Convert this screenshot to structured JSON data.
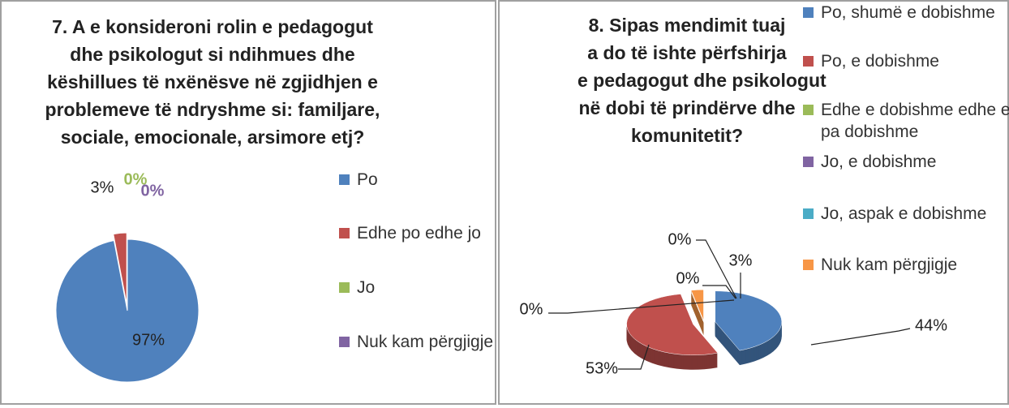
{
  "chart_data": [
    {
      "type": "pie",
      "title": [
        "7. A e konsideroni rolin e pedagogut",
        "dhe psikologut si ndihmues dhe",
        "këshillues të nxënësve në zgjidhjen e",
        "problemeve të ndryshme si: familjare,",
        "sociale, emocionale, arsimore etj?"
      ],
      "categories": [
        "Po",
        "Edhe po edhe jo",
        "Jo",
        "Nuk kam përgjigje"
      ],
      "values": [
        97,
        3,
        0,
        0
      ],
      "value_labels": [
        "97%",
        "3%",
        "0%",
        "0%"
      ],
      "colors": [
        "#4f81bd",
        "#c0504d",
        "#9bbb59",
        "#8064a2"
      ],
      "label_colors": [
        "#222222",
        "#222222",
        "#9bbb59",
        "#8064a2"
      ],
      "legend": "right"
    },
    {
      "type": "pie3d",
      "title": [
        "8. Sipas mendimit tuaj",
        "a do të ishte përfshirja",
        "e pedagogut dhe psikologut",
        "në dobi të prindërve dhe",
        "komunitetit?"
      ],
      "categories": [
        "Po, shumë e dobishme",
        "Po, e dobishme",
        "Edhe e dobishme edhe e pa dobishme",
        "Jo, e dobishme",
        "Jo, aspak e dobishme",
        "Nuk kam përgjigje"
      ],
      "values": [
        44,
        53,
        0,
        0,
        0,
        3
      ],
      "value_labels": [
        "44%",
        "53%",
        "0%",
        "0%",
        "0%",
        "3%"
      ],
      "colors": [
        "#4f81bd",
        "#c0504d",
        "#9bbb59",
        "#8064a2",
        "#4bacc6",
        "#f79646"
      ],
      "legend": "right"
    }
  ]
}
